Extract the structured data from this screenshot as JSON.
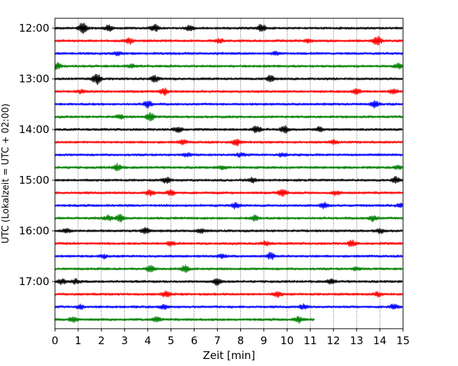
{
  "chart_data": {
    "type": "line",
    "title": "",
    "xlabel": "Zeit  [min]",
    "ylabel": "UTC (Lokalzeit = UTC + 02:00)",
    "xlim": [
      0,
      15
    ],
    "x_ticks": [
      0,
      1,
      2,
      3,
      4,
      5,
      6,
      7,
      8,
      9,
      10,
      11,
      12,
      13,
      14,
      15
    ],
    "x_grid": true,
    "y_grid": false,
    "y_ticks": [
      "12:00",
      "13:00",
      "14:00",
      "15:00",
      "16:00",
      "17:00"
    ],
    "row_interval_minutes": 15,
    "row_colors": [
      "#000000",
      "#ff0000",
      "#0000ff",
      "#008000"
    ],
    "series": [
      {
        "start": "12:00",
        "end_min": 15,
        "events": [
          [
            1.2,
            0.9
          ],
          [
            2.3,
            0.5
          ],
          [
            4.3,
            0.55
          ],
          [
            5.8,
            0.4
          ],
          [
            8.9,
            0.6
          ]
        ]
      },
      {
        "start": "12:15",
        "end_min": 15,
        "events": [
          [
            3.2,
            0.5
          ],
          [
            7.1,
            0.3
          ],
          [
            10.9,
            0.3
          ],
          [
            13.9,
            0.7
          ]
        ]
      },
      {
        "start": "12:30",
        "end_min": 15,
        "events": [
          [
            2.7,
            0.25
          ],
          [
            9.5,
            0.2
          ]
        ]
      },
      {
        "start": "12:45",
        "end_min": 15,
        "events": [
          [
            0.1,
            0.5
          ],
          [
            3.3,
            0.3
          ],
          [
            14.8,
            0.45
          ]
        ]
      },
      {
        "start": "13:00",
        "end_min": 15,
        "events": [
          [
            1.8,
            0.9
          ],
          [
            4.3,
            0.5
          ],
          [
            9.3,
            0.55
          ]
        ]
      },
      {
        "start": "13:15",
        "end_min": 15,
        "events": [
          [
            1.1,
            0.3
          ],
          [
            4.7,
            0.5
          ],
          [
            13.0,
            0.4
          ],
          [
            14.6,
            0.5
          ]
        ]
      },
      {
        "start": "13:30",
        "end_min": 15,
        "events": [
          [
            4.0,
            0.6
          ],
          [
            13.8,
            0.5
          ]
        ]
      },
      {
        "start": "13:45",
        "end_min": 15,
        "events": [
          [
            2.8,
            0.3
          ],
          [
            4.1,
            0.6
          ]
        ]
      },
      {
        "start": "14:00",
        "end_min": 15,
        "events": [
          [
            5.3,
            0.5
          ],
          [
            8.7,
            0.6
          ],
          [
            9.9,
            0.55
          ],
          [
            11.4,
            0.35
          ]
        ]
      },
      {
        "start": "14:15",
        "end_min": 15,
        "events": [
          [
            5.5,
            0.35
          ],
          [
            7.8,
            0.55
          ],
          [
            12.0,
            0.3
          ]
        ]
      },
      {
        "start": "14:30",
        "end_min": 15,
        "events": [
          [
            5.7,
            0.3
          ],
          [
            8.0,
            0.3
          ],
          [
            9.8,
            0.3
          ]
        ]
      },
      {
        "start": "14:45",
        "end_min": 15,
        "events": [
          [
            2.7,
            0.55
          ],
          [
            7.2,
            0.3
          ],
          [
            14.8,
            0.3
          ]
        ]
      },
      {
        "start": "15:00",
        "end_min": 15,
        "events": [
          [
            4.8,
            0.45
          ],
          [
            8.5,
            0.45
          ],
          [
            14.7,
            0.5
          ]
        ]
      },
      {
        "start": "15:15",
        "end_min": 15,
        "events": [
          [
            4.1,
            0.5
          ],
          [
            5.0,
            0.45
          ],
          [
            9.8,
            0.7
          ],
          [
            12.1,
            0.3
          ]
        ]
      },
      {
        "start": "15:30",
        "end_min": 15,
        "events": [
          [
            7.8,
            0.5
          ],
          [
            11.6,
            0.45
          ],
          [
            14.9,
            0.35
          ]
        ]
      },
      {
        "start": "15:45",
        "end_min": 15,
        "events": [
          [
            2.3,
            0.4
          ],
          [
            2.8,
            0.55
          ],
          [
            8.6,
            0.45
          ],
          [
            13.7,
            0.45
          ]
        ]
      },
      {
        "start": "16:00",
        "end_min": 15,
        "events": [
          [
            0.5,
            0.4
          ],
          [
            3.9,
            0.5
          ],
          [
            6.3,
            0.3
          ],
          [
            14.0,
            0.35
          ]
        ]
      },
      {
        "start": "16:15",
        "end_min": 15,
        "events": [
          [
            5.0,
            0.3
          ],
          [
            9.1,
            0.35
          ],
          [
            12.8,
            0.5
          ]
        ]
      },
      {
        "start": "16:30",
        "end_min": 15,
        "events": [
          [
            2.1,
            0.3
          ],
          [
            7.2,
            0.3
          ],
          [
            9.3,
            0.55
          ]
        ]
      },
      {
        "start": "16:45",
        "end_min": 15,
        "events": [
          [
            4.1,
            0.5
          ],
          [
            5.6,
            0.55
          ],
          [
            13.0,
            0.25
          ]
        ]
      },
      {
        "start": "17:00",
        "end_min": 15,
        "events": [
          [
            0.3,
            0.45
          ],
          [
            0.9,
            0.35
          ],
          [
            7.0,
            0.5
          ],
          [
            11.9,
            0.4
          ]
        ]
      },
      {
        "start": "17:15",
        "end_min": 15,
        "events": [
          [
            4.8,
            0.55
          ],
          [
            9.6,
            0.4
          ],
          [
            13.9,
            0.35
          ]
        ]
      },
      {
        "start": "17:30",
        "end_min": 15,
        "events": [
          [
            1.1,
            0.3
          ],
          [
            4.7,
            0.3
          ],
          [
            10.7,
            0.35
          ],
          [
            14.6,
            0.4
          ]
        ]
      },
      {
        "start": "17:45",
        "end_min": 11.2,
        "events": [
          [
            0.8,
            0.4
          ],
          [
            4.4,
            0.5
          ],
          [
            10.5,
            0.5
          ]
        ]
      }
    ]
  }
}
